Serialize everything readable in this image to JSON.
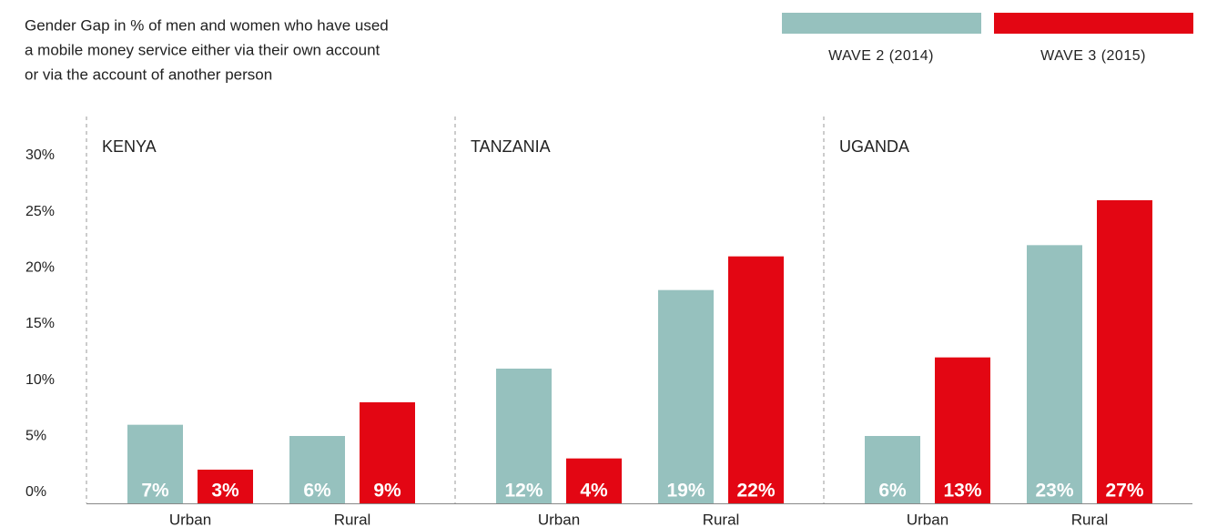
{
  "chart_data": {
    "type": "bar",
    "title": [
      "Gender Gap in % of men and women who have used",
      "a mobile money service either via their own account",
      "or via the account of another person"
    ],
    "groups": [
      "KENYA",
      "TANZANIA",
      "UGANDA"
    ],
    "categories": [
      "Urban",
      "Rural",
      "Urban",
      "Rural",
      "Urban",
      "Rural"
    ],
    "series": [
      {
        "name": "WAVE 2 (2014)",
        "color": "#96c1be",
        "values": [
          7,
          6,
          12,
          19,
          6,
          23
        ],
        "value_labels": [
          "7%",
          "6%",
          "12%",
          "19%",
          "6%",
          "23%"
        ]
      },
      {
        "name": "WAVE 3 (2015)",
        "color": "#e30613",
        "values": [
          3,
          9,
          4,
          22,
          13,
          27
        ],
        "value_labels": [
          "3%",
          "9%",
          "4%",
          "22%",
          "13%",
          "27%"
        ]
      }
    ],
    "ylim": [
      0,
      30
    ],
    "yticks": [
      {
        "value": 0,
        "label": "0%"
      },
      {
        "value": 5,
        "label": "5%"
      },
      {
        "value": 10,
        "label": "10%"
      },
      {
        "value": 15,
        "label": "15%"
      },
      {
        "value": 20,
        "label": "20%"
      },
      {
        "value": 25,
        "label": "25%"
      },
      {
        "value": 30,
        "label": "30%"
      }
    ],
    "legend": "top-right",
    "grid": false
  }
}
